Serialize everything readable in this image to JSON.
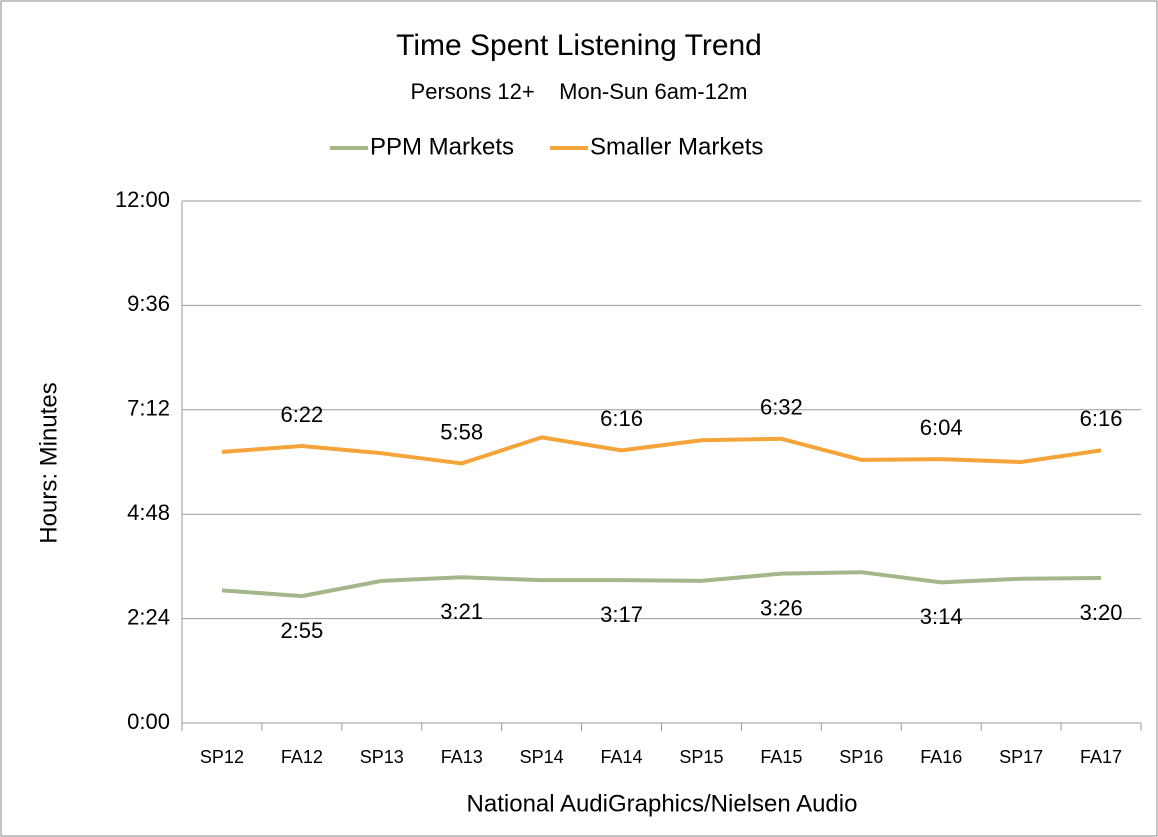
{
  "chart_data": {
    "type": "line",
    "title": "Time Spent Listening Trend",
    "subtitle": "Persons 12+    Mon-Sun 6am-12m",
    "x_label": "National AudiGraphics/Nielsen Audio",
    "y_label": "Hours: Minutes",
    "categories": [
      "SP12",
      "FA12",
      "SP13",
      "FA13",
      "SP14",
      "FA14",
      "SP15",
      "FA15",
      "SP16",
      "FA16",
      "SP17",
      "FA17"
    ],
    "series": [
      {
        "name": "PPM Markets",
        "color": "#a3b78b",
        "values": [
          183,
          175,
          196,
          201,
          197,
          197,
          196,
          206,
          208,
          194,
          199,
          200
        ],
        "value_labels": [
          null,
          "2:55",
          null,
          "3:21",
          null,
          "3:17",
          null,
          "3:26",
          null,
          "3:14",
          null,
          "3:20"
        ]
      },
      {
        "name": "Smaller Markets",
        "color": "#f4a43a",
        "values": [
          374,
          382,
          372,
          358,
          394,
          376,
          390,
          392,
          363,
          364,
          360,
          376
        ],
        "value_labels": [
          null,
          "6:22",
          null,
          "5:58",
          null,
          "6:16",
          null,
          "6:32",
          null,
          "6:04",
          null,
          "6:16"
        ]
      }
    ],
    "ylim": [
      0,
      720
    ],
    "yticks": [
      {
        "value": 0,
        "label": "0:00"
      },
      {
        "value": 144,
        "label": "2:24"
      },
      {
        "value": 288,
        "label": "4:48"
      },
      {
        "value": 432,
        "label": "7:12"
      },
      {
        "value": 576,
        "label": "9:36"
      },
      {
        "value": 720,
        "label": "12:00"
      }
    ],
    "grid": true,
    "legend": "top"
  }
}
